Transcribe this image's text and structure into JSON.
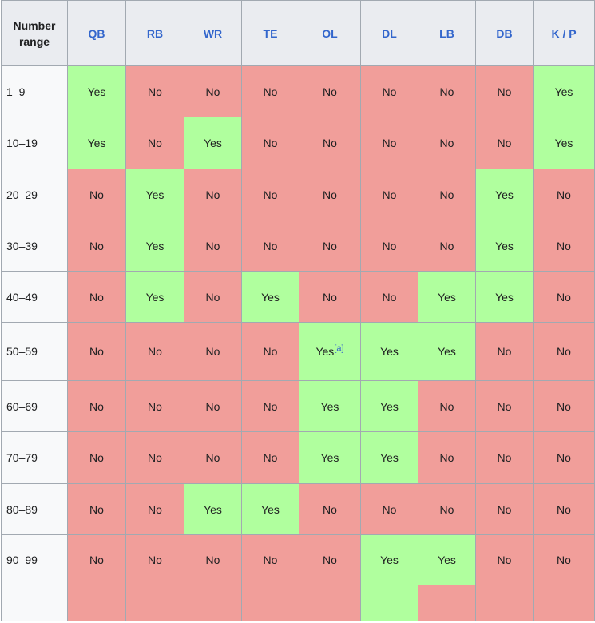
{
  "header": {
    "first_col": "Number range",
    "positions": [
      "QB",
      "RB",
      "WR",
      "TE",
      "OL",
      "DL",
      "LB",
      "DB",
      "K / P"
    ]
  },
  "rows": [
    {
      "range": "1–9",
      "cells": [
        "Yes",
        "No",
        "No",
        "No",
        "No",
        "No",
        "No",
        "No",
        "Yes"
      ]
    },
    {
      "range": "10–19",
      "cells": [
        "Yes",
        "No",
        "Yes",
        "No",
        "No",
        "No",
        "No",
        "No",
        "Yes"
      ]
    },
    {
      "range": "20–29",
      "cells": [
        "No",
        "Yes",
        "No",
        "No",
        "No",
        "No",
        "No",
        "Yes",
        "No"
      ]
    },
    {
      "range": "30–39",
      "cells": [
        "No",
        "Yes",
        "No",
        "No",
        "No",
        "No",
        "No",
        "Yes",
        "No"
      ]
    },
    {
      "range": "40–49",
      "cells": [
        "No",
        "Yes",
        "No",
        "Yes",
        "No",
        "No",
        "Yes",
        "Yes",
        "No"
      ]
    },
    {
      "range": "50–59",
      "cells": [
        "No",
        "No",
        "No",
        "No",
        "Yes",
        "Yes",
        "Yes",
        "No",
        "No"
      ],
      "notes": {
        "4": "[a]"
      }
    },
    {
      "range": "60–69",
      "cells": [
        "No",
        "No",
        "No",
        "No",
        "Yes",
        "Yes",
        "No",
        "No",
        "No"
      ]
    },
    {
      "range": "70–79",
      "cells": [
        "No",
        "No",
        "No",
        "No",
        "Yes",
        "Yes",
        "No",
        "No",
        "No"
      ]
    },
    {
      "range": "80–89",
      "cells": [
        "No",
        "No",
        "Yes",
        "Yes",
        "No",
        "No",
        "No",
        "No",
        "No"
      ]
    },
    {
      "range": "90–99",
      "cells": [
        "No",
        "No",
        "No",
        "No",
        "No",
        "Yes",
        "Yes",
        "No",
        "No"
      ]
    },
    {
      "range": "",
      "cells": [
        "",
        "",
        "",
        "",
        "",
        "",
        "",
        "",
        ""
      ],
      "colors": [
        "no",
        "no",
        "no",
        "no",
        "no",
        "yes",
        "no",
        "no",
        "no"
      ]
    }
  ],
  "colors": {
    "yes": "#b0ff9e",
    "no": "#f19e9a",
    "link": "#3366cc",
    "header_bg": "#eaecf0",
    "row_header_bg": "#f8f9fa"
  }
}
